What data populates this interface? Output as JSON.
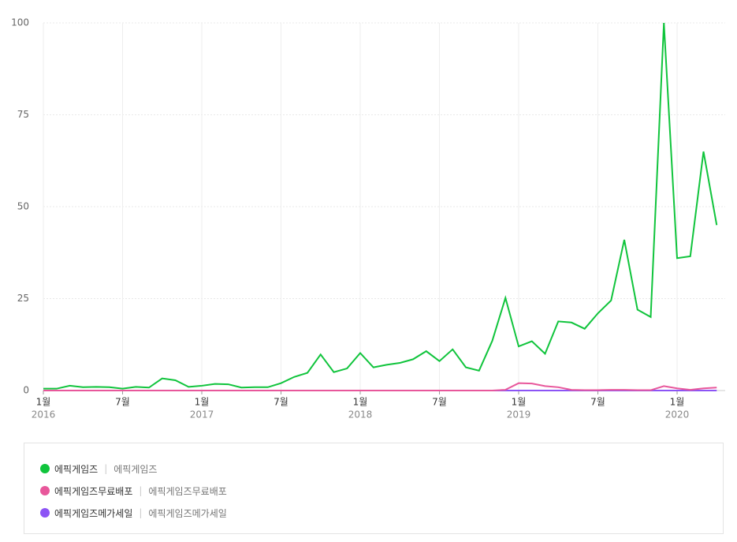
{
  "chart_data": {
    "type": "line",
    "categories": [
      "1월",
      null,
      null,
      null,
      null,
      null,
      "7월",
      null,
      null,
      null,
      null,
      null,
      "1월",
      null,
      null,
      null,
      null,
      null,
      "7월",
      null,
      null,
      null,
      null,
      null,
      "1월",
      null,
      null,
      null,
      null,
      null,
      "7월",
      null,
      null,
      null,
      null,
      null,
      "1월",
      null,
      null,
      null,
      null,
      null,
      "7월",
      null,
      null,
      null,
      null,
      null,
      "1월",
      null,
      null,
      null
    ],
    "year_labels": [
      "2016",
      null,
      null,
      null,
      null,
      null,
      null,
      null,
      null,
      null,
      null,
      null,
      "2017",
      null,
      null,
      null,
      null,
      null,
      null,
      null,
      null,
      null,
      null,
      null,
      "2018",
      null,
      null,
      null,
      null,
      null,
      null,
      null,
      null,
      null,
      null,
      null,
      "2019",
      null,
      null,
      null,
      null,
      null,
      null,
      null,
      null,
      null,
      null,
      null,
      "2020",
      null,
      null,
      null
    ],
    "ylim": [
      0,
      100
    ],
    "yticks": [
      0,
      25,
      50,
      75,
      100
    ],
    "grid": true,
    "series": [
      {
        "name": "에픽게임즈",
        "keywords": "에픽게임즈",
        "color": "#10c43c",
        "values": [
          0.5,
          0.5,
          1.3,
          0.9,
          1,
          0.9,
          0.5,
          1,
          0.8,
          3.3,
          2.8,
          1,
          1.3,
          1.8,
          1.7,
          0.8,
          0.9,
          0.9,
          2,
          3.7,
          4.8,
          9.8,
          5,
          6,
          10.2,
          6.3,
          7,
          7.5,
          8.5,
          10.7,
          8,
          11.2,
          6.3,
          5.4,
          13.5,
          25.2,
          12,
          13.4,
          10,
          18.8,
          18.5,
          16.8,
          21,
          24.5,
          41,
          22,
          20,
          100,
          36,
          36.5,
          65,
          45
        ]
      },
      {
        "name": "에픽게임즈무료배포",
        "keywords": "에픽게임즈무료배포",
        "color": "#e8579b",
        "values": [
          0,
          0,
          0,
          0,
          0,
          0,
          0,
          0,
          0,
          0,
          0,
          0,
          0,
          0,
          0,
          0,
          0,
          0,
          0,
          0,
          0,
          0,
          0,
          0,
          0,
          0,
          0,
          0,
          0,
          0,
          0,
          0,
          0,
          0,
          0,
          0.2,
          2,
          1.9,
          1.2,
          0.9,
          0.2,
          0.1,
          0.1,
          0.2,
          0.2,
          0.1,
          0.1,
          1.2,
          0.6,
          0.2,
          0.6,
          0.8
        ]
      },
      {
        "name": "에픽게임즈메가세일",
        "keywords": "에픽게임즈메가세일",
        "color": "#8c54f5",
        "values": [
          0,
          0,
          0,
          0,
          0,
          0,
          0,
          0,
          0,
          0,
          0,
          0,
          0,
          0,
          0,
          0,
          0,
          0,
          0,
          0,
          0,
          0,
          0,
          0,
          0,
          0,
          0,
          0,
          0,
          0,
          0,
          0,
          0,
          0,
          0,
          0,
          0,
          0,
          0,
          0,
          0,
          0,
          0,
          0,
          0,
          0,
          0,
          0,
          0,
          0,
          0,
          0
        ]
      }
    ]
  }
}
